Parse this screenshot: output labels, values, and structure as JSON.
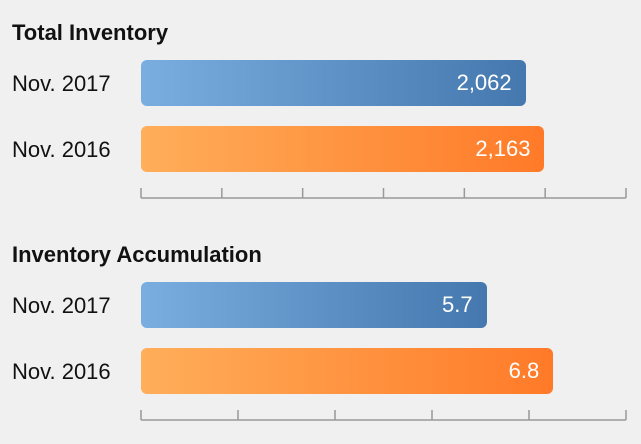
{
  "chart_data": [
    {
      "type": "bar",
      "orientation": "horizontal",
      "title": "Total Inventory",
      "categories": [
        "Nov. 2017",
        "Nov. 2016"
      ],
      "values": [
        2062,
        2163
      ],
      "value_labels": [
        "2,062",
        "2,163"
      ],
      "bar_colors": [
        "#4f81bd",
        "#ff7f2a"
      ],
      "xlim": [
        0,
        2600
      ],
      "grid": false,
      "tick_labels_shown": false
    },
    {
      "type": "bar",
      "orientation": "horizontal",
      "title": "Inventory Accumulation",
      "categories": [
        "Nov. 2017",
        "Nov. 2016"
      ],
      "values": [
        5.7,
        6.8
      ],
      "value_labels": [
        "5.7",
        "6.8"
      ],
      "bar_colors": [
        "#4f81bd",
        "#ff7f2a"
      ],
      "xlim": [
        0,
        8
      ],
      "grid": false,
      "tick_labels_shown": false
    }
  ]
}
